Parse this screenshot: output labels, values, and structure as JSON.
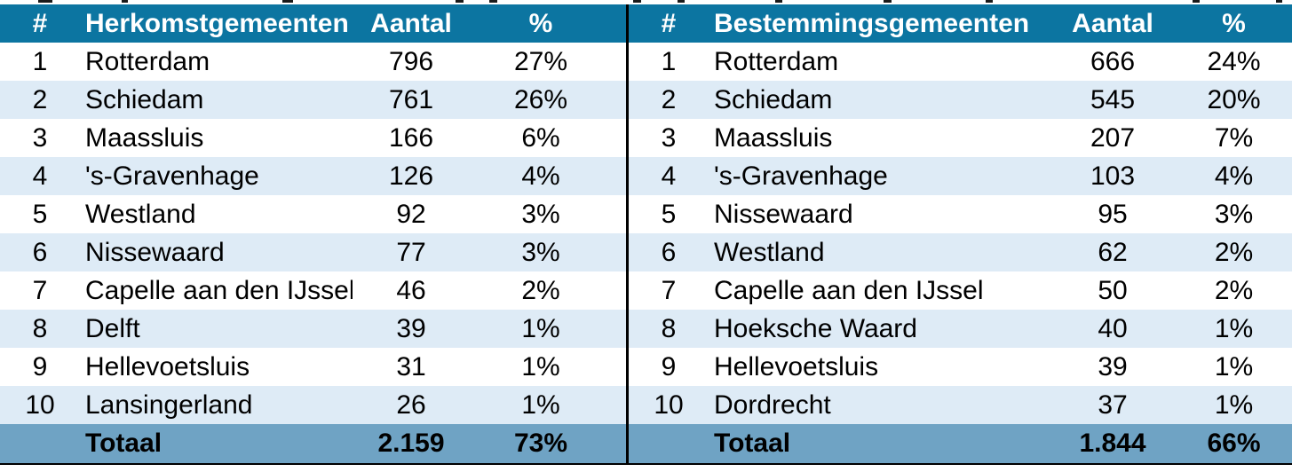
{
  "colors": {
    "header_bg": "#0C75A1",
    "stripe": "#DEEBF6",
    "row_white": "#FFFFFF",
    "total_bg": "#6FA3C4",
    "divider": "#000000",
    "header_text": "#FFFFFF",
    "body_text": "#000000"
  },
  "tables": [
    {
      "name": "origin-municipalities",
      "headers": [
        "#",
        "Herkomstgemeenten",
        "Aantal",
        "%"
      ],
      "rows": [
        [
          "1",
          "Rotterdam",
          "796",
          "27%"
        ],
        [
          "2",
          "Schiedam",
          "761",
          "26%"
        ],
        [
          "3",
          "Maassluis",
          "166",
          "6%"
        ],
        [
          "4",
          "'s-Gravenhage",
          "126",
          "4%"
        ],
        [
          "5",
          "Westland",
          "92",
          "3%"
        ],
        [
          "6",
          "Nissewaard",
          "77",
          "3%"
        ],
        [
          "7",
          "Capelle aan den IJssel",
          "46",
          "2%"
        ],
        [
          "8",
          "Delft",
          "39",
          "1%"
        ],
        [
          "9",
          "Hellevoetsluis",
          "31",
          "1%"
        ],
        [
          "10",
          "Lansingerland",
          "26",
          "1%"
        ]
      ],
      "total": [
        "",
        "Totaal",
        "2.159",
        "73%"
      ]
    },
    {
      "name": "destination-municipalities",
      "headers": [
        "#",
        "Bestemmingsgemeenten",
        "Aantal",
        "%"
      ],
      "rows": [
        [
          "1",
          "Rotterdam",
          "666",
          "24%"
        ],
        [
          "2",
          "Schiedam",
          "545",
          "20%"
        ],
        [
          "3",
          "Maassluis",
          "207",
          "7%"
        ],
        [
          "4",
          "'s-Gravenhage",
          "103",
          "4%"
        ],
        [
          "5",
          "Nissewaard",
          "95",
          "3%"
        ],
        [
          "6",
          "Westland",
          "62",
          "2%"
        ],
        [
          "7",
          "Capelle aan den IJssel",
          "50",
          "2%"
        ],
        [
          "8",
          "Hoeksche Waard",
          "40",
          "1%"
        ],
        [
          "9",
          "Hellevoetsluis",
          "39",
          "1%"
        ],
        [
          "10",
          "Dordrecht",
          "37",
          "1%"
        ]
      ],
      "total": [
        "",
        "Totaal",
        "1.844",
        "66%"
      ]
    }
  ]
}
